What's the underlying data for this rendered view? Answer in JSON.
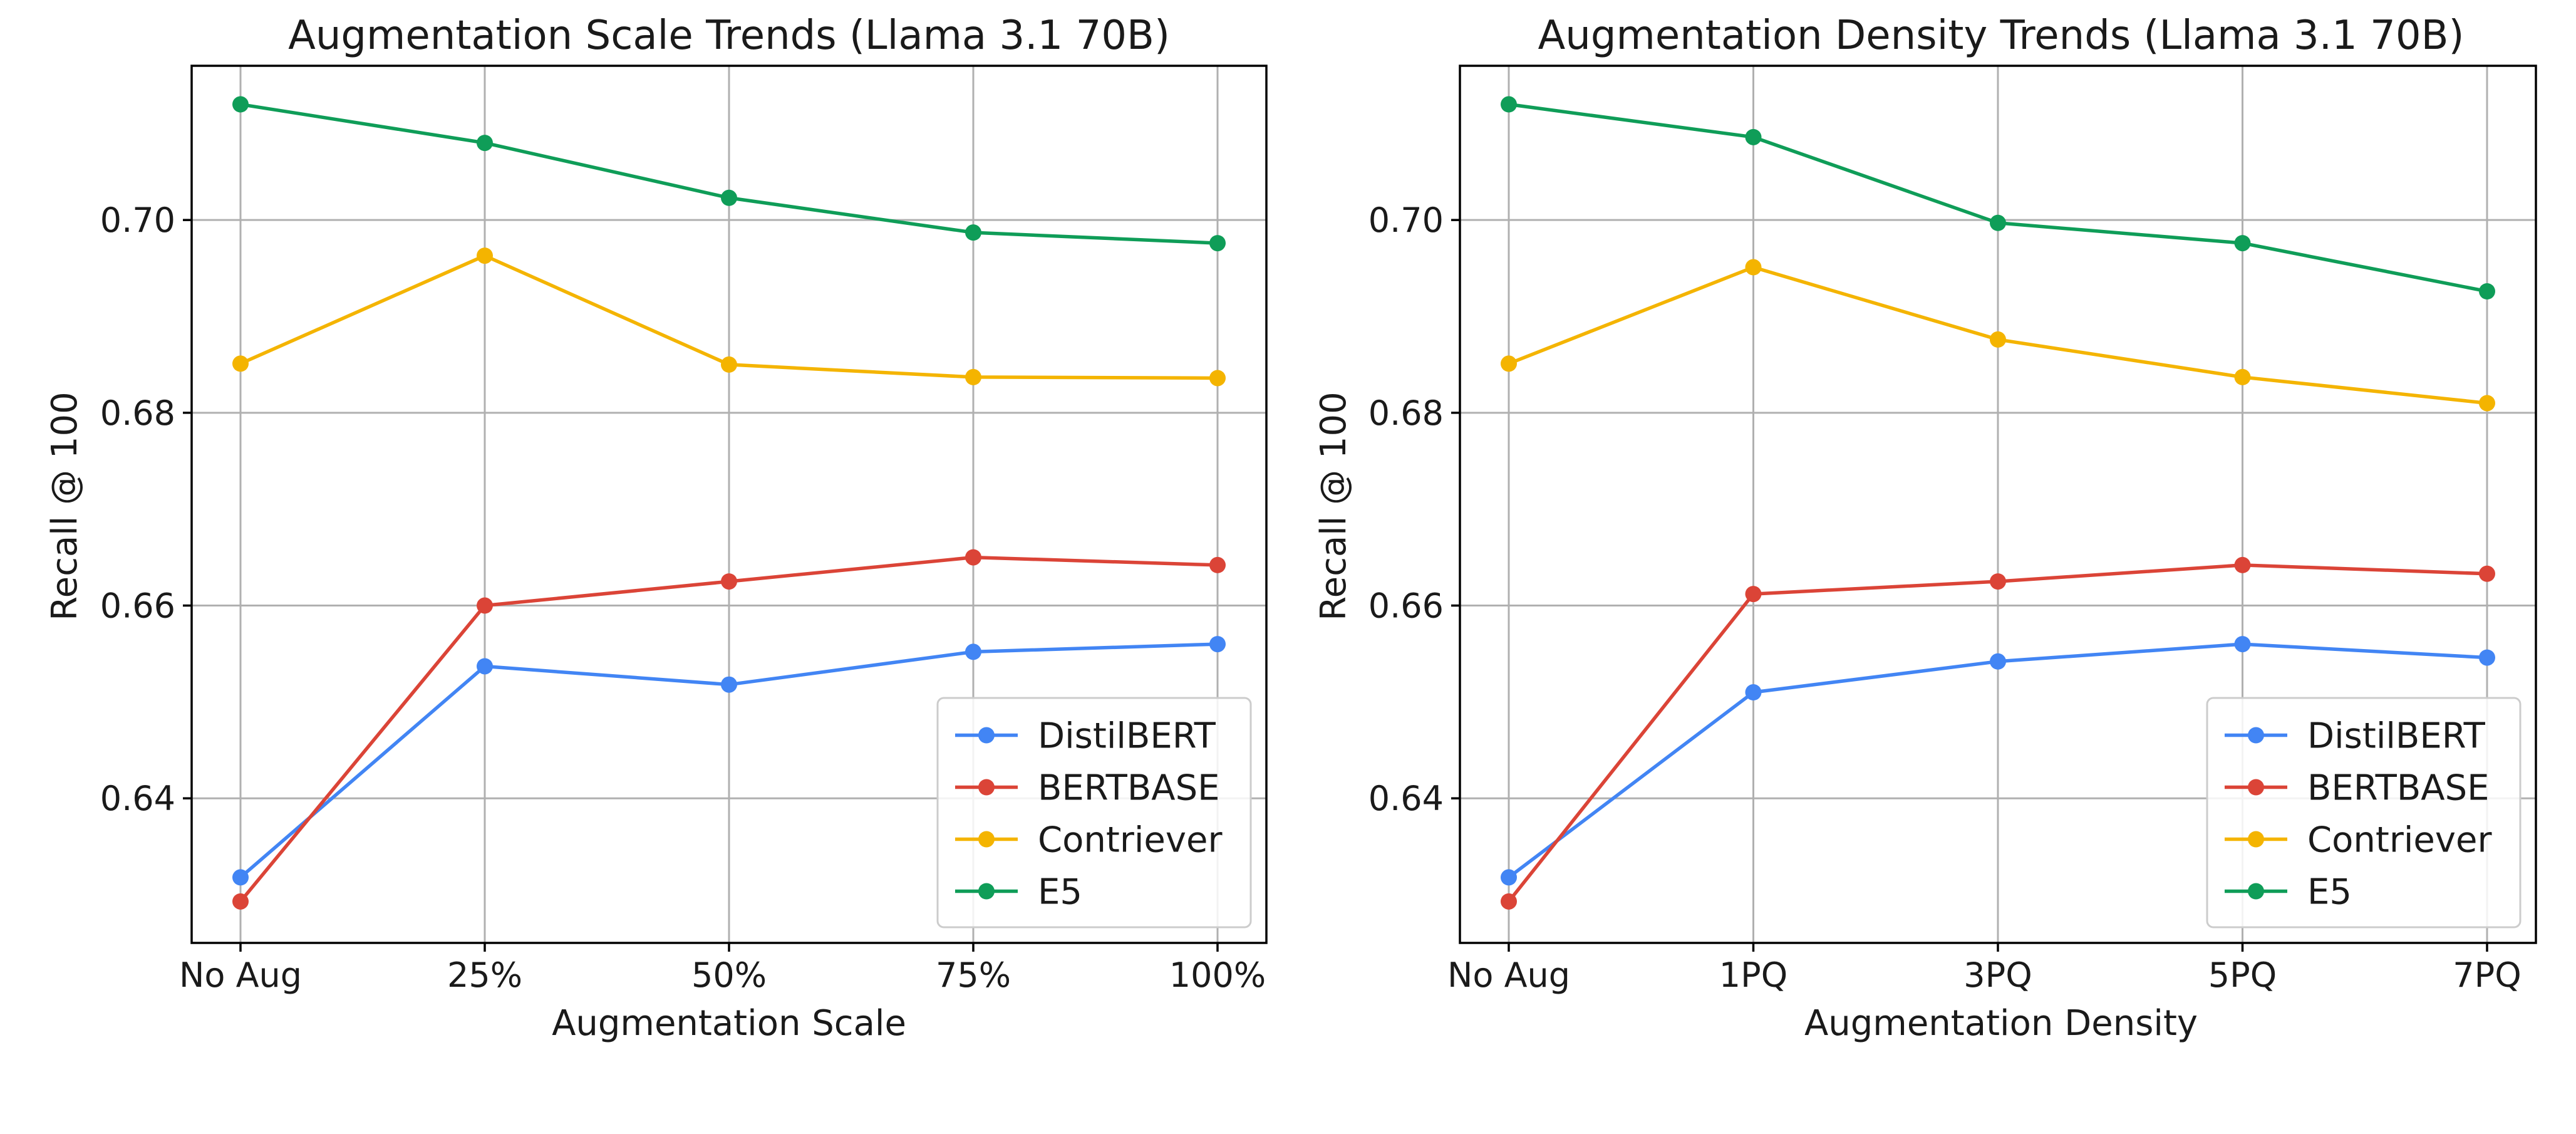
{
  "chart_data": [
    {
      "type": "line",
      "title": "Augmentation Scale Trends (Llama 3.1 70B)",
      "xlabel": "Augmentation Scale",
      "ylabel": "Recall @ 100",
      "categories": [
        "No Aug",
        "25%",
        "50%",
        "75%",
        "100%"
      ],
      "ylim": [
        0.625,
        0.716
      ],
      "yticks": [
        0.64,
        0.66,
        0.68,
        0.7
      ],
      "ytick_labels": [
        "0.64",
        "0.66",
        "0.68",
        "0.70"
      ],
      "grid": true,
      "legend_position": "lower-right",
      "series": [
        {
          "name": "DistilBERT",
          "color": "#4285f4",
          "values": [
            0.6318,
            0.6537,
            0.6518,
            0.6552,
            0.656
          ]
        },
        {
          "name": "BERTBASE",
          "color": "#db4437",
          "values": [
            0.6293,
            0.66,
            0.6625,
            0.665,
            0.6642
          ]
        },
        {
          "name": "Contriever",
          "color": "#f4b400",
          "values": [
            0.6851,
            0.6963,
            0.685,
            0.6837,
            0.6836
          ]
        },
        {
          "name": "E5",
          "color": "#0f9d58",
          "values": [
            0.712,
            0.708,
            0.7023,
            0.6987,
            0.6976
          ]
        }
      ]
    },
    {
      "type": "line",
      "title": "Augmentation Density Trends (Llama 3.1 70B)",
      "xlabel": "Augmentation Density",
      "ylabel": "Recall @ 100",
      "categories": [
        "No Aug",
        "1PQ",
        "3PQ",
        "5PQ",
        "7PQ"
      ],
      "ylim": [
        0.625,
        0.716
      ],
      "yticks": [
        0.64,
        0.66,
        0.68,
        0.7
      ],
      "ytick_labels": [
        "0.64",
        "0.66",
        "0.68",
        "0.70"
      ],
      "grid": true,
      "legend_position": "lower-right",
      "series": [
        {
          "name": "DistilBERT",
          "color": "#4285f4",
          "values": [
            0.6318,
            0.651,
            0.6542,
            0.656,
            0.6546
          ]
        },
        {
          "name": "BERTBASE",
          "color": "#db4437",
          "values": [
            0.6293,
            0.6612,
            0.6625,
            0.6642,
            0.6633
          ]
        },
        {
          "name": "Contriever",
          "color": "#f4b400",
          "values": [
            0.6851,
            0.6951,
            0.6876,
            0.6837,
            0.681
          ]
        },
        {
          "name": "E5",
          "color": "#0f9d58",
          "values": [
            0.712,
            0.7086,
            0.6997,
            0.6976,
            0.6926
          ]
        }
      ]
    }
  ]
}
